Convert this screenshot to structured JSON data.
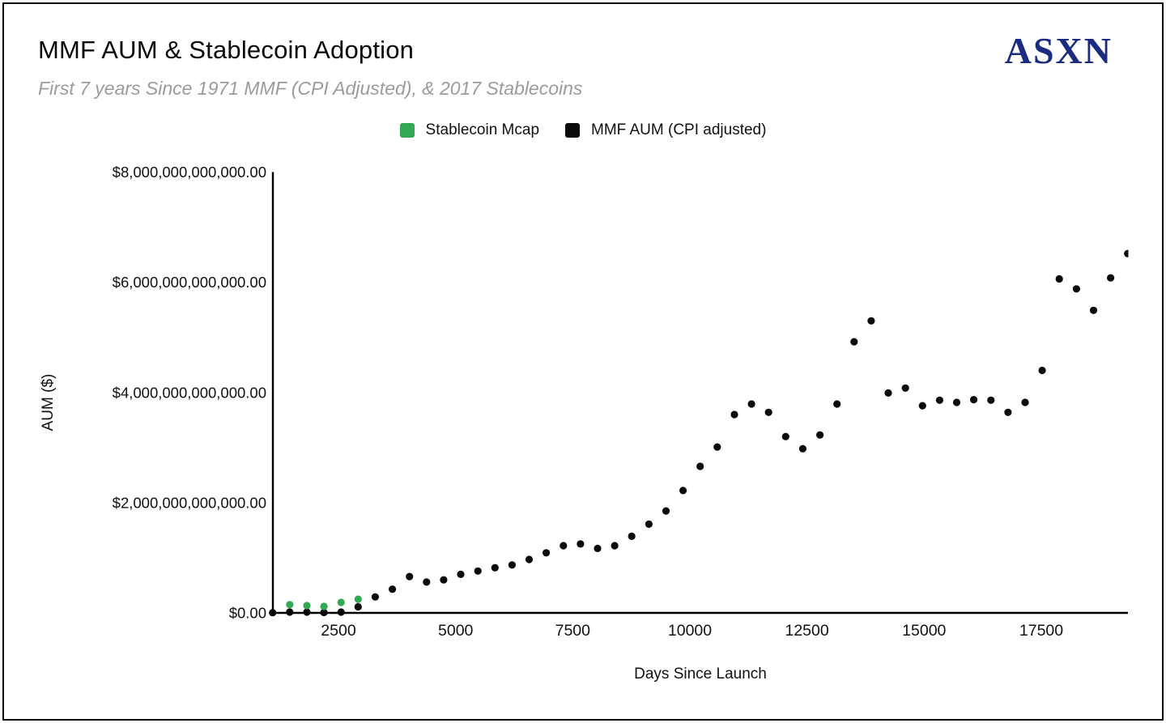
{
  "header": {
    "title": "MMF AUM & Stablecoin Adoption",
    "subtitle": "First 7 years Since 1971 MMF (CPI Adjusted), & 2017 Stablecoins",
    "logo": "ASXN"
  },
  "colors": {
    "stablecoin_green": "#34a853",
    "mmf_black": "#0a0a0a",
    "logo_navy": "#1b2c80",
    "subtitle_gray": "#9b9b9b",
    "axis_black": "#000000"
  },
  "legend": [
    {
      "label": "Stablecoin Mcap",
      "color": "#34a853"
    },
    {
      "label": "MMF AUM (CPI adjusted)",
      "color": "#0a0a0a"
    }
  ],
  "chart_data": {
    "type": "scatter",
    "title": "MMF AUM & Stablecoin Adoption",
    "subtitle": "First 7 years Since 1971 MMF (CPI Adjusted), & 2017 Stablecoins",
    "xlabel": "Days Since Launch",
    "ylabel": "AUM ($)",
    "units": "USD trillions",
    "xlim": [
      1100,
      19350
    ],
    "ylim": [
      0,
      8
    ],
    "grid": false,
    "legend_position": "top-center",
    "x_ticks": [
      {
        "value": 2500,
        "label": "2500"
      },
      {
        "value": 5000,
        "label": "5000"
      },
      {
        "value": 7500,
        "label": "7500"
      },
      {
        "value": 10000,
        "label": "10000"
      },
      {
        "value": 12500,
        "label": "12500"
      },
      {
        "value": 15000,
        "label": "15000"
      },
      {
        "value": 17500,
        "label": "17500"
      }
    ],
    "y_ticks": [
      {
        "value": 0,
        "label": "$0.00"
      },
      {
        "value": 2,
        "label": "$2,000,000,000,000.00"
      },
      {
        "value": 4,
        "label": "$4,000,000,000,000.00"
      },
      {
        "value": 6,
        "label": "$6,000,000,000,000.00"
      },
      {
        "value": 8,
        "label": "$8,000,000,000,000.00"
      }
    ],
    "series": [
      {
        "name": "MMF AUM (CPI adjusted)",
        "color": "#0a0a0a",
        "x": [
          1095,
          1460,
          1825,
          2190,
          2555,
          2920,
          3285,
          3650,
          4015,
          4380,
          4745,
          5110,
          5475,
          5840,
          6205,
          6570,
          6935,
          7300,
          7665,
          8030,
          8395,
          8760,
          9125,
          9490,
          9855,
          10220,
          10585,
          10950,
          11315,
          11680,
          12045,
          12410,
          12775,
          13140,
          13505,
          13870,
          14235,
          14600,
          14965,
          15330,
          15695,
          16060,
          16425,
          16790,
          17155,
          17520,
          17885,
          18250,
          18615,
          18980,
          19345
        ],
        "y": [
          0.005,
          0.015,
          0.015,
          0.008,
          0.015,
          0.11,
          0.29,
          0.43,
          0.66,
          0.56,
          0.6,
          0.7,
          0.76,
          0.82,
          0.87,
          0.97,
          1.09,
          1.22,
          1.25,
          1.17,
          1.22,
          1.39,
          1.61,
          1.85,
          2.22,
          2.66,
          3.01,
          3.6,
          3.79,
          3.64,
          3.2,
          2.98,
          3.23,
          3.79,
          4.92,
          5.3,
          3.99,
          4.08,
          3.76,
          3.86,
          3.82,
          3.87,
          3.86,
          3.64,
          3.82,
          4.4,
          6.06,
          5.88,
          5.49,
          6.08,
          6.52
        ]
      },
      {
        "name": "Stablecoin Mcap",
        "color": "#34a853",
        "x": [
          1460,
          1825,
          2190,
          2555,
          2920
        ],
        "y": [
          0.15,
          0.132,
          0.117,
          0.191,
          0.249
        ]
      }
    ]
  }
}
